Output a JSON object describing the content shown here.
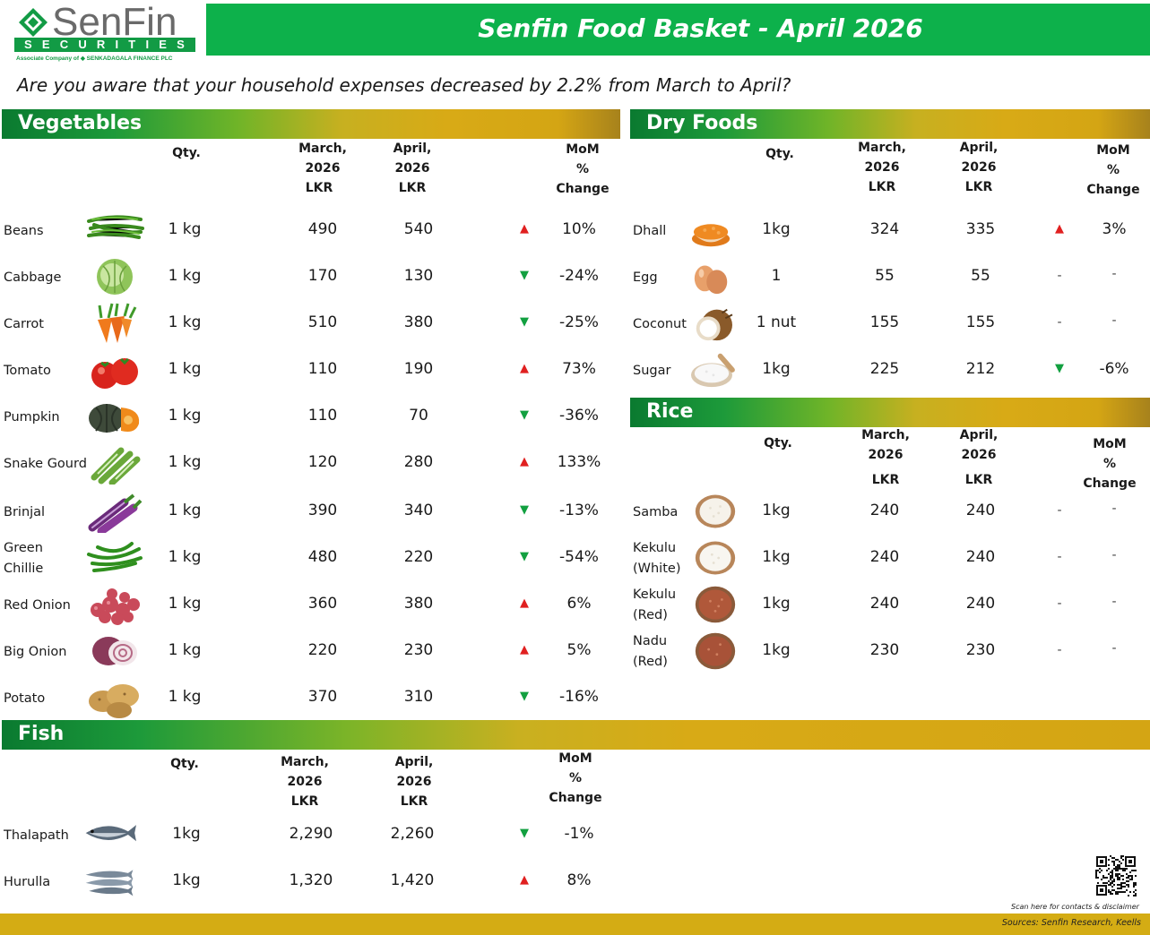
{
  "brand": {
    "name": "SenFin",
    "bar": "SECURITIES",
    "tagline": "Associate Company of  ◆ SENKADAGALA FINANCE PLC",
    "color": "#0db14b"
  },
  "title": "Senfin Food Basket - April 2026",
  "subtitle": "Are you aware that your household expenses decreased by 2.2% from March to April?",
  "headers": {
    "qty": "Qty.",
    "mar1": "March,",
    "mar2": "2026",
    "lkr": "LKR",
    "apr1": "April,",
    "apr2": "2026",
    "mom1": "MoM",
    "mom2": "%",
    "mom3": "Change"
  },
  "vegetables": {
    "title": "Vegetables",
    "rows": [
      {
        "name": "Beans",
        "icon": "beans-image",
        "qty": "1 kg",
        "march": "490",
        "april": "540",
        "dir": "up",
        "change": "10%"
      },
      {
        "name": "Cabbage",
        "icon": "cabbage-image",
        "qty": "1 kg",
        "march": "170",
        "april": "130",
        "dir": "down",
        "change": "-24%"
      },
      {
        "name": "Carrot",
        "icon": "carrot-image",
        "qty": "1 kg",
        "march": "510",
        "april": "380",
        "dir": "down",
        "change": "-25%"
      },
      {
        "name": "Tomato",
        "icon": "tomato-image",
        "qty": "1 kg",
        "march": "110",
        "april": "190",
        "dir": "up",
        "change": "73%"
      },
      {
        "name": "Pumpkin",
        "icon": "pumpkin-image",
        "qty": "1 kg",
        "march": "110",
        "april": "70",
        "dir": "down",
        "change": "-36%"
      },
      {
        "name": "Snake Gourd",
        "icon": "snake-gourd-image",
        "qty": "1 kg",
        "march": "120",
        "april": "280",
        "dir": "up",
        "change": "133%"
      },
      {
        "name": "Brinjal",
        "icon": "brinjal-image",
        "qty": "1 kg",
        "march": "390",
        "april": "340",
        "dir": "down",
        "change": "-13%"
      },
      {
        "name": "Green Chillie",
        "icon": "green-chillie-image",
        "qty": "1 kg",
        "march": "480",
        "april": "220",
        "dir": "down",
        "change": "-54%"
      },
      {
        "name": "Red Onion",
        "icon": "red-onion-image",
        "qty": "1 kg",
        "march": "360",
        "april": "380",
        "dir": "up",
        "change": "6%"
      },
      {
        "name": "Big Onion",
        "icon": "big-onion-image",
        "qty": "1 kg",
        "march": "220",
        "april": "230",
        "dir": "up",
        "change": "5%"
      },
      {
        "name": "Potato",
        "icon": "potato-image",
        "qty": "1 kg",
        "march": "370",
        "april": "310",
        "dir": "down",
        "change": "-16%"
      }
    ]
  },
  "dry_foods": {
    "title": "Dry Foods",
    "rows": [
      {
        "name": "Dhall",
        "icon": "dhall-image",
        "qty": "1kg",
        "march": "324",
        "april": "335",
        "dir": "up",
        "change": "3%"
      },
      {
        "name": "Egg",
        "icon": "egg-image",
        "qty": "1",
        "march": "55",
        "april": "55",
        "dir": "-",
        "change": "-"
      },
      {
        "name": "Coconut",
        "icon": "coconut-image",
        "qty": "1 nut",
        "march": "155",
        "april": "155",
        "dir": "-",
        "change": "-"
      },
      {
        "name": "Sugar",
        "icon": "sugar-image",
        "qty": "1kg",
        "march": "225",
        "april": "212",
        "dir": "down",
        "change": "-6%"
      }
    ]
  },
  "rice": {
    "title": "Rice",
    "rows": [
      {
        "name": "Samba",
        "icon": "samba-rice-image",
        "qty": "1kg",
        "march": "240",
        "april": "240",
        "dir": "-",
        "change": "-"
      },
      {
        "name": "Kekulu (White)",
        "icon": "kekulu-white-image",
        "qty": "1kg",
        "march": "240",
        "april": "240",
        "dir": "-",
        "change": "-"
      },
      {
        "name": "Kekulu (Red)",
        "icon": "kekulu-red-image",
        "qty": "1kg",
        "march": "240",
        "april": "240",
        "dir": "-",
        "change": "-"
      },
      {
        "name": "Nadu (Red)",
        "icon": "nadu-red-image",
        "qty": "1kg",
        "march": "230",
        "april": "230",
        "dir": "-",
        "change": "-"
      }
    ]
  },
  "fish": {
    "title": "Fish",
    "rows": [
      {
        "name": "Thalapath",
        "icon": "thalapath-image",
        "qty": "1kg",
        "march": "2,290",
        "april": "2,260",
        "dir": "down",
        "change": "-1%"
      },
      {
        "name": "Hurulla",
        "icon": "hurulla-image",
        "qty": "1kg",
        "march": "1,320",
        "april": "1,420",
        "dir": "up",
        "change": "8%"
      }
    ]
  },
  "footer": {
    "scan": "Scan here for contacts & disclaimer",
    "sources": "Sources: Senfin Research, Keells"
  },
  "colors": {
    "up": "#e02020",
    "down": "#12a040",
    "gold": "#d4ac14"
  }
}
